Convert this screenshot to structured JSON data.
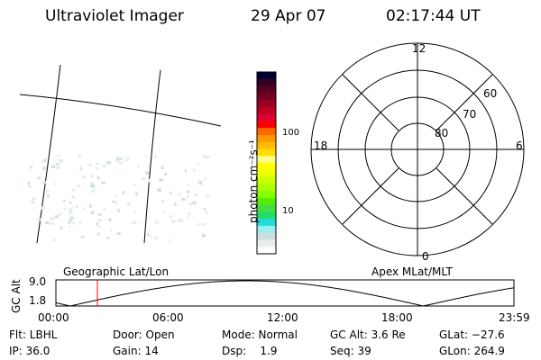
{
  "header": {
    "instrument": "Ultraviolet Imager",
    "date": "29 Apr 07",
    "time": "02:17:44 UT"
  },
  "colorbar": {
    "label": "photon cm⁻²s⁻¹",
    "ticks": [
      "100",
      "10"
    ],
    "colors": [
      "#000033",
      "#330022",
      "#550022",
      "#770022",
      "#990022",
      "#bb0022",
      "#dd0033",
      "#ff0000",
      "#ff6600",
      "#ff9900",
      "#ffbb00",
      "#ffdd00",
      "#ffff88",
      "#ffff00",
      "#eeff00",
      "#ccff00",
      "#aaff00",
      "#88ff00",
      "#55ee00",
      "#44dd44",
      "#22dd66",
      "#22dddd",
      "#99eeee",
      "#ccdddd",
      "#e8eeea",
      "#ffffff"
    ]
  },
  "polar": {
    "labels": {
      "top": "12",
      "left": "18",
      "right": "6",
      "bottom": "0"
    },
    "rings": [
      "80",
      "70",
      "60"
    ]
  },
  "timeline": {
    "left_label": "Geographic Lat/Lon",
    "right_label": "Apex MLat/MLT",
    "ylabel": "GC Alt",
    "yticks": [
      "9.0",
      "1.8"
    ],
    "xticks": [
      "00:00",
      "06:00",
      "12:00",
      "18:00",
      "23:59"
    ],
    "current_time_marker_color": "#ff0000"
  },
  "status": {
    "row1": [
      "Flt: LBHL",
      "Door: Open",
      "Mode: Normal",
      "GC Alt: 3.6 Re",
      "GLat: −27.6"
    ],
    "row2": [
      "IP: 36.0",
      "Gain: 14",
      "Dsp:    1.9",
      "Seq: 39",
      "GLon: 264.9"
    ]
  }
}
